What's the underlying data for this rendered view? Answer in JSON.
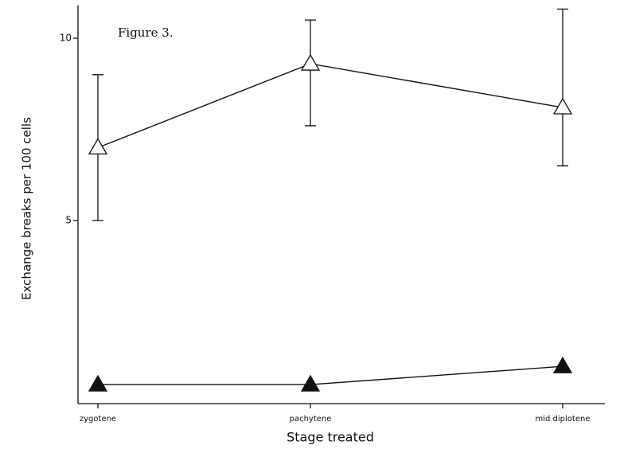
{
  "chart_data": {
    "type": "line",
    "annotation": "Figure 3.",
    "y_label": "Exchange breaks per 100 cells",
    "x_label": "Stage treated",
    "categories": [
      "zygotene",
      "pachytene",
      "mid diplotene"
    ],
    "series": [
      {
        "color": "#111111",
        "marker": "open-triangle",
        "values": [
          7.0,
          9.3,
          8.1
        ],
        "error_low": [
          5.0,
          7.6,
          6.5
        ],
        "error_high": [
          9.0,
          10.5,
          10.8
        ]
      },
      {
        "color": "#111111",
        "marker": "filled-triangle",
        "values": [
          0.5,
          0.5,
          1.0
        ]
      }
    ],
    "ylim": [
      0,
      10.9
    ],
    "yticks": [
      5,
      10
    ],
    "grid": false
  }
}
